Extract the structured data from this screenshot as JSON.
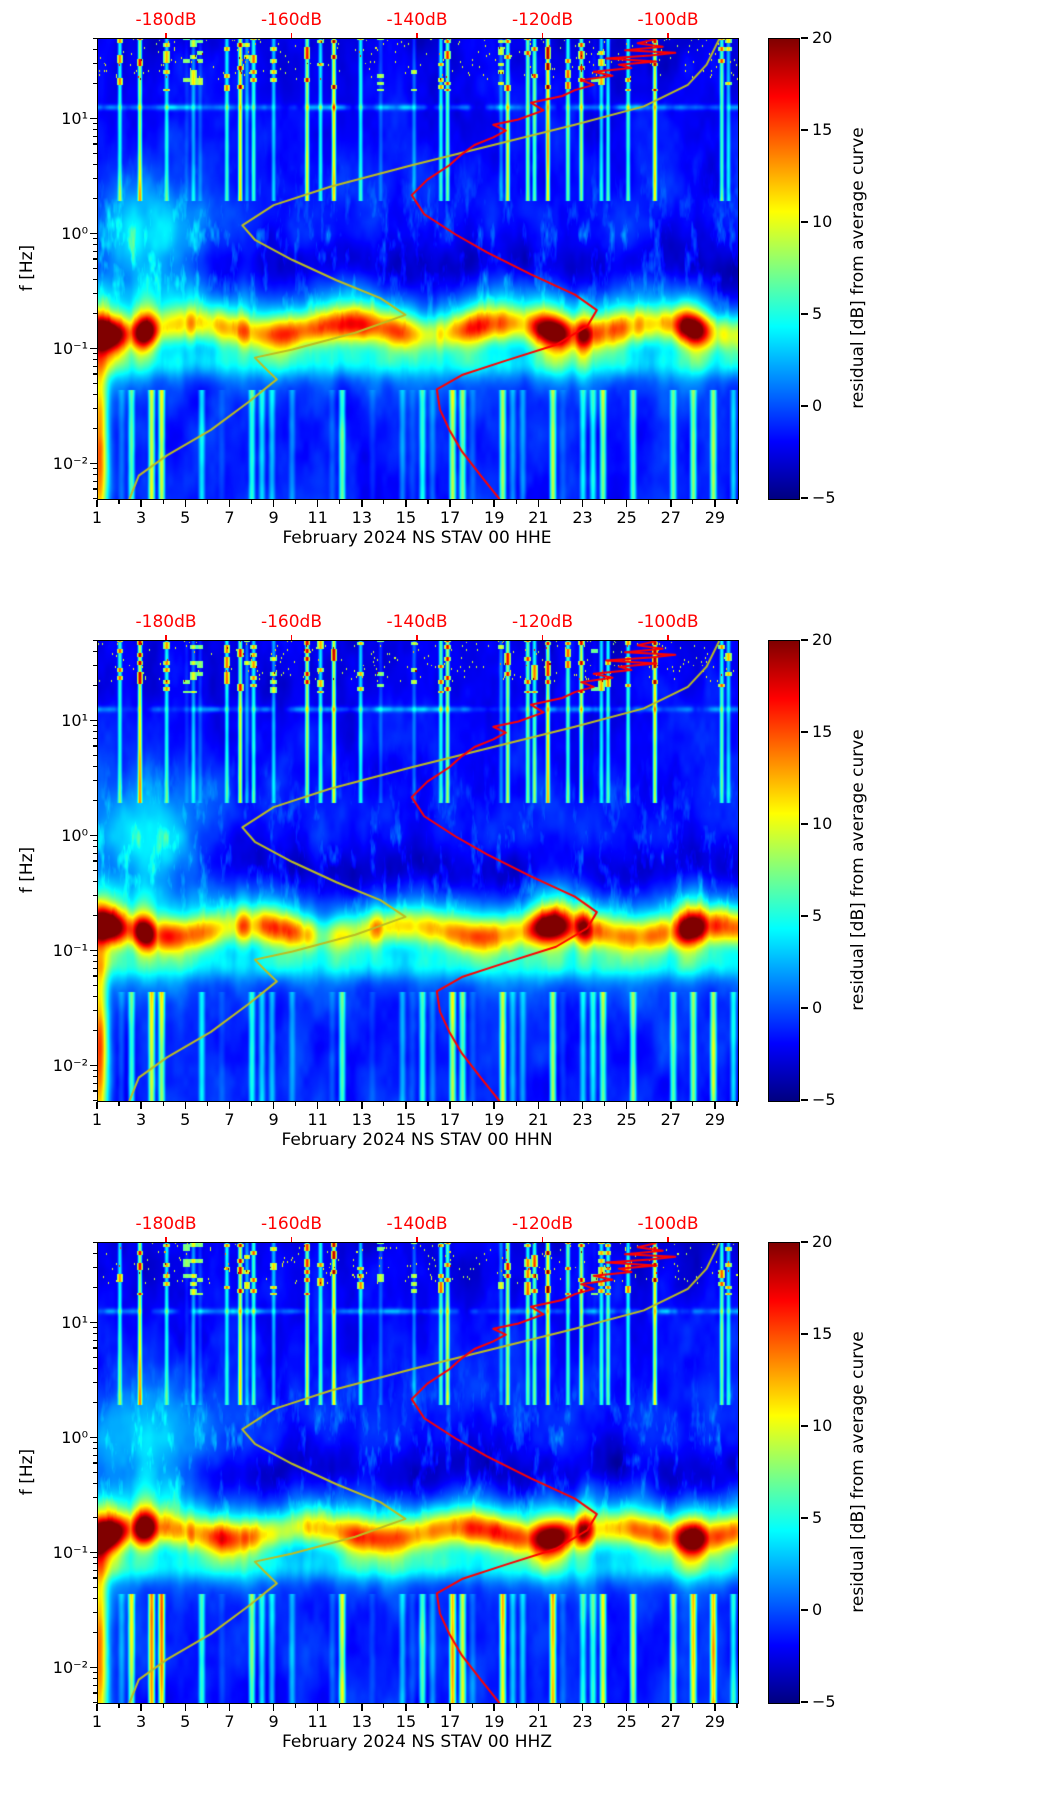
{
  "chart_data": {
    "type": "heatmap",
    "layout": "three stacked spectrogram panels with identical axes and colorbars",
    "panels": [
      {
        "channel": "HHE",
        "xlabel": "February 2024 NS STAV 00 HHE"
      },
      {
        "channel": "HHN",
        "xlabel": "February 2024 NS STAV 00 HHN"
      },
      {
        "channel": "HHZ",
        "xlabel": "February 2024 NS STAV 00 HHZ"
      }
    ],
    "x_axis": {
      "tick_labels": [
        "1",
        "3",
        "5",
        "7",
        "9",
        "11",
        "13",
        "15",
        "17",
        "19",
        "21",
        "23",
        "25",
        "27",
        "29"
      ],
      "tick_values": [
        1,
        3,
        5,
        7,
        9,
        11,
        13,
        15,
        17,
        19,
        21,
        23,
        25,
        27,
        29
      ],
      "minor_tick_values": [
        2,
        4,
        6,
        8,
        10,
        12,
        14,
        16,
        18,
        20,
        22,
        24,
        26,
        28,
        30
      ],
      "range_days": [
        1,
        30
      ]
    },
    "y_axis": {
      "label": "f [Hz]",
      "scale": "log",
      "range_hz": [
        0.005,
        50
      ],
      "tick_labels": [
        "10¹",
        "10⁰",
        "10⁻¹",
        "10⁻²"
      ],
      "tick_exponents": [
        1,
        0,
        -1,
        -2
      ]
    },
    "top_axis_db": {
      "color": "#ff0000",
      "tick_labels": [
        "-180dB",
        "-160dB",
        "-140dB",
        "-120dB",
        "-100dB"
      ],
      "tick_values_db": [
        -180,
        -160,
        -140,
        -120,
        -100
      ],
      "axis_range_db": [
        -191,
        -89
      ]
    },
    "color_axis": {
      "label": "residual [dB] from average curve",
      "vmin": -5,
      "vmax": 20,
      "colormap": "jet",
      "tick_labels": [
        "20",
        "15",
        "10",
        "5",
        "0",
        "−5"
      ],
      "tick_values": [
        20,
        15,
        10,
        5,
        0,
        -5
      ],
      "colormap_stops": [
        [
          "#000080",
          0
        ],
        [
          "#0000ff",
          12.5
        ],
        [
          "#00ffff",
          37.5
        ],
        [
          "#ffff00",
          62.5
        ],
        [
          "#ff0000",
          87.5
        ],
        [
          "#800000",
          100
        ]
      ]
    },
    "overlay_curves": [
      {
        "name": "reference average spectrum curve",
        "color": "#bcbd22",
        "points_f_hz_db": [
          [
            0.005,
            -186
          ],
          [
            0.008,
            -184.5
          ],
          [
            0.012,
            -180
          ],
          [
            0.02,
            -173
          ],
          [
            0.035,
            -167
          ],
          [
            0.055,
            -162.5
          ],
          [
            0.07,
            -164.5
          ],
          [
            0.085,
            -166
          ],
          [
            0.1,
            -160
          ],
          [
            0.14,
            -150
          ],
          [
            0.2,
            -142
          ],
          [
            0.28,
            -146
          ],
          [
            0.4,
            -153
          ],
          [
            0.6,
            -160
          ],
          [
            0.9,
            -166
          ],
          [
            1.2,
            -168
          ],
          [
            1.8,
            -163
          ],
          [
            2.6,
            -154
          ],
          [
            4,
            -141
          ],
          [
            6,
            -128
          ],
          [
            9,
            -115
          ],
          [
            13,
            -104
          ],
          [
            20,
            -97
          ],
          [
            30,
            -94
          ],
          [
            50,
            -92
          ]
        ]
      },
      {
        "name": "monthly average spectrum curve",
        "color": "#ff0000",
        "points_f_hz_db": [
          [
            0.005,
            -127
          ],
          [
            0.008,
            -130
          ],
          [
            0.013,
            -133
          ],
          [
            0.02,
            -135
          ],
          [
            0.03,
            -136.5
          ],
          [
            0.045,
            -137
          ],
          [
            0.06,
            -133
          ],
          [
            0.08,
            -126
          ],
          [
            0.11,
            -118
          ],
          [
            0.16,
            -113
          ],
          [
            0.22,
            -111.5
          ],
          [
            0.3,
            -115
          ],
          [
            0.45,
            -122
          ],
          [
            0.7,
            -129
          ],
          [
            1,
            -134
          ],
          [
            1.5,
            -139
          ],
          [
            2.2,
            -141
          ],
          [
            3,
            -138.5
          ],
          [
            4,
            -135
          ],
          [
            5,
            -133
          ],
          [
            6,
            -131
          ],
          [
            7,
            -128
          ],
          [
            8,
            -126
          ],
          [
            9,
            -128
          ],
          [
            10,
            -124
          ],
          [
            12,
            -120
          ],
          [
            14,
            -122
          ],
          [
            16,
            -117
          ],
          [
            18,
            -115
          ],
          [
            20,
            -112
          ],
          [
            22,
            -114
          ],
          [
            24,
            -109
          ],
          [
            26,
            -112
          ],
          [
            28,
            -106
          ],
          [
            30,
            -108
          ],
          [
            32,
            -102
          ],
          [
            34,
            -110
          ],
          [
            36,
            -103
          ],
          [
            38,
            -99
          ],
          [
            40,
            -107
          ],
          [
            43,
            -101
          ],
          [
            46,
            -105
          ],
          [
            50,
            -102
          ]
        ]
      }
    ],
    "heatmap_features": [
      "background mostly dark blue (residual near -5 dB) above 0.3 Hz",
      "strong red/yellow band at 0.1-0.2 Hz (secondary microseism), most intense on days 1-4, 21-24 and 27-29",
      "broadband vertical yellow/red stripes on many individual days spanning 2-50 Hz (transient noise bursts), with dark red speckles above 10 Hz",
      "cyan/green cloud between 0.3 and 2 Hz during days 1-7",
      "vertical cyan/yellow stripes below 0.05 Hz throughout the month",
      "narrow cyan band near 0.07 Hz",
      "thin bright horizontal streaks near 13 Hz",
      "solid red column at the very left edge at low frequencies"
    ]
  }
}
